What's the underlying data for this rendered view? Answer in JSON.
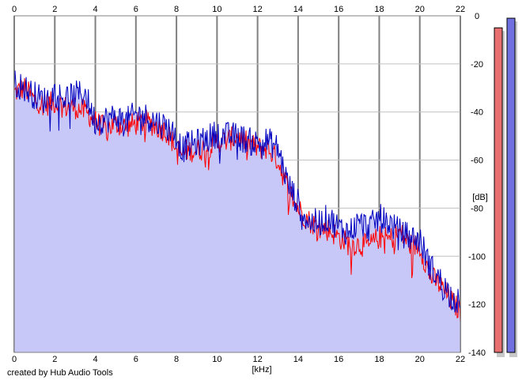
{
  "footer": {
    "credit": "created by Hub Audio Tools"
  },
  "chart_data": {
    "type": "area",
    "title": "",
    "xlabel": "[kHz]",
    "ylabel": "[dB]",
    "xlim": [
      0,
      22
    ],
    "ylim": [
      -140,
      0
    ],
    "x_ticks": [
      "0",
      "2",
      "4",
      "6",
      "8",
      "10",
      "12",
      "14",
      "16",
      "18",
      "20",
      "22"
    ],
    "y_ticks": [
      "0",
      "-20",
      "-40",
      "-60",
      "-80",
      "-100",
      "-120",
      "-140"
    ],
    "grid": true,
    "x": [
      0,
      0.5,
      1,
      1.5,
      2,
      2.5,
      3,
      3.5,
      3.8,
      4,
      4.5,
      5,
      5.5,
      6,
      6.5,
      7,
      7.5,
      8,
      8.3,
      8.5,
      9,
      9.5,
      10,
      10.5,
      11,
      11.5,
      12,
      12.5,
      13,
      13.5,
      14,
      14.5,
      15,
      15.5,
      16,
      16.5,
      17,
      17.5,
      18,
      18.5,
      19,
      19.5,
      20,
      20.5,
      21,
      21.5,
      22
    ],
    "series": [
      {
        "color": "#ff0000",
        "values": [
          -32,
          -30,
          -35,
          -37,
          -36,
          -38,
          -38,
          -40,
          -42,
          -44,
          -47,
          -45,
          -46,
          -45,
          -44,
          -46,
          -48,
          -55,
          -58,
          -56,
          -56,
          -55,
          -52,
          -52,
          -50,
          -53,
          -55,
          -55,
          -60,
          -72,
          -80,
          -85,
          -88,
          -89,
          -92,
          -95,
          -95,
          -96,
          -92,
          -93,
          -90,
          -95,
          -96,
          -108,
          -112,
          -118,
          -123
        ]
      },
      {
        "color": "#0000c0",
        "values": [
          -28,
          -30,
          -33,
          -35,
          -32,
          -34,
          -33,
          -32,
          -40,
          -44,
          -43,
          -42,
          -44,
          -41,
          -42,
          -44,
          -46,
          -50,
          -56,
          -54,
          -53,
          -51,
          -49,
          -50,
          -50,
          -52,
          -53,
          -52,
          -55,
          -70,
          -78,
          -86,
          -86,
          -84,
          -88,
          -90,
          -86,
          -88,
          -84,
          -86,
          -90,
          -92,
          -93,
          -104,
          -110,
          -116,
          -120
        ]
      }
    ],
    "fill_color": "#c8c8f8",
    "level_meters": [
      {
        "color": "#e87070",
        "level_db": -5
      },
      {
        "color": "#7070e0",
        "level_db": -1
      }
    ]
  }
}
